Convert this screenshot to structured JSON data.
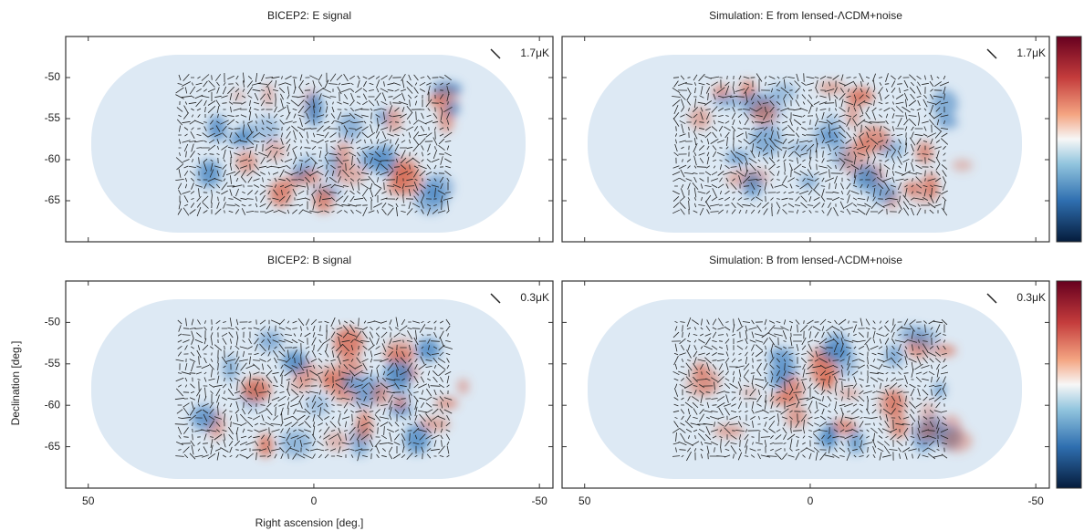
{
  "chart_data": [
    {
      "type": "map",
      "title": "BICEP2: E signal",
      "scale_label": "1.7μK",
      "xlim": [
        55,
        -53
      ],
      "ylim": [
        -70,
        -45
      ],
      "xticks": [
        50,
        0,
        -50
      ],
      "yticks": [
        -50,
        -55,
        -60,
        -65
      ]
    },
    {
      "type": "map",
      "title": "Simulation: E from lensed-ΛCDM+noise",
      "scale_label": "1.7μK",
      "xlim": [
        55,
        -53
      ],
      "ylim": [
        -70,
        -45
      ],
      "xticks": [
        50,
        0,
        -50
      ],
      "yticks": [
        -50,
        -55,
        -60,
        -65
      ]
    },
    {
      "type": "map",
      "title": "BICEP2: B signal",
      "scale_label": "0.3μK",
      "xlabel": "Right ascension [deg.]",
      "ylabel": "Declination [deg.]",
      "xlim": [
        55,
        -53
      ],
      "ylim": [
        -70,
        -45
      ],
      "xticks": [
        50,
        0,
        -50
      ],
      "yticks": [
        -50,
        -55,
        -60,
        -65
      ]
    },
    {
      "type": "map",
      "title": "Simulation: B from lensed-ΛCDM+noise",
      "scale_label": "0.3μK",
      "xlim": [
        55,
        -53
      ],
      "ylim": [
        -70,
        -45
      ],
      "xticks": [
        50,
        0,
        -50
      ],
      "yticks": [
        -50,
        -55,
        -60,
        -65
      ]
    }
  ]
}
